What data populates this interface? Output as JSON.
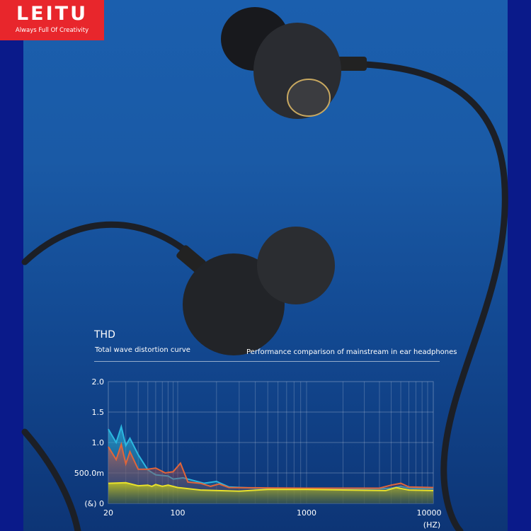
{
  "brand": {
    "name": "LEITU",
    "tagline": "Always Full Of Creativity",
    "color": "#e8262c"
  },
  "heading": {
    "title": "THD",
    "subtitle": "Total wave distortion curve",
    "caption": "Performance comparison of mainstream in ear headphones"
  },
  "chart_data": {
    "type": "area",
    "title": "THD",
    "xlabel": "(HZ)",
    "ylabel": "(&)",
    "x_scale": "log",
    "xlim": [
      20,
      12000
    ],
    "ylim": [
      0,
      2.0
    ],
    "grid": true,
    "x_ticks": [
      "20",
      "100",
      "1000",
      "10000"
    ],
    "y_ticks": [
      "0",
      "500.0m",
      "1.0",
      "1.5",
      "2.0"
    ],
    "series": [
      {
        "color": "#2bb8e0",
        "points": [
          [
            20,
            1.22
          ],
          [
            24,
            1.0
          ],
          [
            27,
            1.26
          ],
          [
            30,
            0.95
          ],
          [
            33,
            1.07
          ],
          [
            40,
            0.8
          ],
          [
            50,
            0.55
          ],
          [
            60,
            0.47
          ],
          [
            80,
            0.45
          ],
          [
            90,
            0.4
          ],
          [
            110,
            0.42
          ],
          [
            130,
            0.38
          ],
          [
            160,
            0.33
          ],
          [
            200,
            0.36
          ],
          [
            250,
            0.27
          ],
          [
            400,
            0.25
          ],
          [
            1000,
            0.24
          ],
          [
            4000,
            0.24
          ],
          [
            5000,
            0.25
          ],
          [
            6000,
            0.28
          ],
          [
            7000,
            0.25
          ],
          [
            12000,
            0.24
          ]
        ]
      },
      {
        "color": "#e0653a",
        "points": [
          [
            20,
            0.93
          ],
          [
            24,
            0.72
          ],
          [
            27,
            0.97
          ],
          [
            30,
            0.65
          ],
          [
            33,
            0.85
          ],
          [
            40,
            0.56
          ],
          [
            50,
            0.56
          ],
          [
            60,
            0.58
          ],
          [
            75,
            0.5
          ],
          [
            90,
            0.52
          ],
          [
            105,
            0.66
          ],
          [
            120,
            0.35
          ],
          [
            150,
            0.33
          ],
          [
            180,
            0.28
          ],
          [
            210,
            0.32
          ],
          [
            250,
            0.26
          ],
          [
            1000,
            0.25
          ],
          [
            4000,
            0.25
          ],
          [
            5000,
            0.3
          ],
          [
            6000,
            0.33
          ],
          [
            7000,
            0.27
          ],
          [
            12000,
            0.26
          ]
        ]
      },
      {
        "color": "#e8e12a",
        "points": [
          [
            20,
            0.33
          ],
          [
            30,
            0.34
          ],
          [
            40,
            0.29
          ],
          [
            50,
            0.3
          ],
          [
            55,
            0.28
          ],
          [
            60,
            0.31
          ],
          [
            70,
            0.28
          ],
          [
            80,
            0.3
          ],
          [
            100,
            0.26
          ],
          [
            150,
            0.22
          ],
          [
            300,
            0.2
          ],
          [
            500,
            0.23
          ],
          [
            1000,
            0.23
          ],
          [
            4500,
            0.21
          ],
          [
            5500,
            0.26
          ],
          [
            7000,
            0.22
          ],
          [
            12000,
            0.21
          ]
        ]
      }
    ]
  }
}
